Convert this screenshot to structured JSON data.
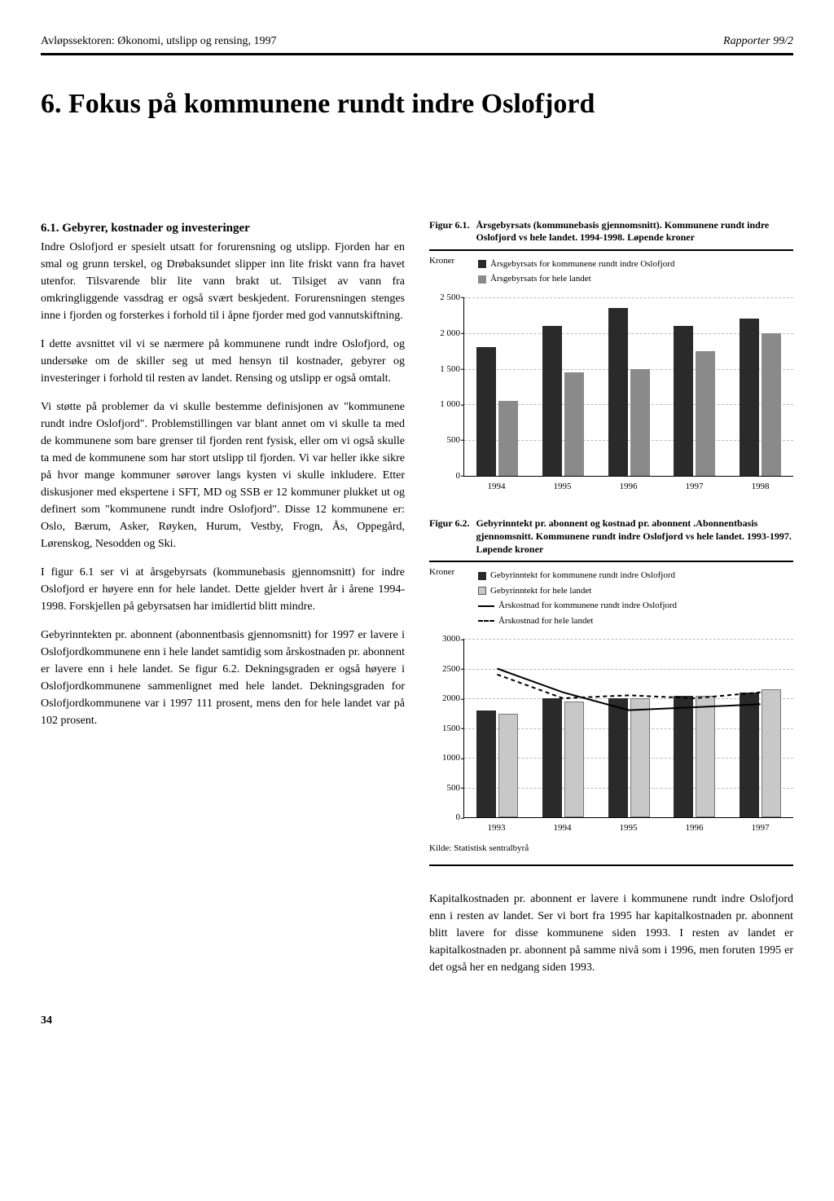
{
  "header": {
    "left": "Avløpssektoren: Økonomi, utslipp og rensing, 1997",
    "right": "Rapporter 99/2"
  },
  "chapter": {
    "number": "6.",
    "title": "Fokus på kommunene rundt indre Oslofjord"
  },
  "section": {
    "heading": "6.1. Gebyrer, kostnader og investeringer",
    "p1": "Indre Oslofjord er spesielt utsatt for forurensning og utslipp. Fjorden har en smal og grunn terskel, og Drøbaksundet slipper inn lite friskt vann fra havet utenfor. Tilsvarende blir lite vann brakt ut. Tilsiget av vann fra omkringliggende vassdrag er også svært beskjedent. Forurensningen stenges inne i fjorden og forsterkes i forhold til i åpne fjorder med god vannutskiftning.",
    "p2": "I dette avsnittet vil vi se nærmere på kommunene rundt indre Oslofjord, og undersøke om de skiller seg ut med hensyn til kostnader, gebyrer og investeringer i forhold til resten av landet. Rensing og utslipp er også omtalt.",
    "p3": "Vi støtte på problemer da vi skulle bestemme definisjonen av \"kommunene rundt indre Oslofjord\". Problemstillingen var blant annet om vi skulle ta med de kommunene som bare grenser til fjorden rent fysisk, eller om vi også skulle ta med de kommunene som har stort utslipp til fjorden. Vi var heller ikke sikre på hvor mange kommuner sørover langs kysten vi skulle inkludere. Etter diskusjoner med ekspertene i SFT, MD og SSB er 12 kommuner plukket ut og definert som \"kommunene rundt indre Oslofjord\". Disse 12 kommunene er: Oslo, Bærum, Asker, Røyken, Hurum, Vestby, Frogn, Ås, Oppegård, Lørenskog, Nesodden og Ski.",
    "p4": "I figur 6.1 ser vi at årsgebyrsats (kommunebasis gjennomsnitt) for indre Oslofjord er høyere enn for hele landet. Dette gjelder hvert år i årene 1994-1998. Forskjellen på gebyrsatsen har imidlertid blitt mindre.",
    "p5": "Gebyrinntekten pr. abonnent (abonnentbasis gjennomsnitt) for 1997 er lavere i Oslofjordkommunene enn i hele landet samtidig som årskostnaden pr. abonnent er lavere enn i hele landet. Se figur 6.2. Dekningsgraden er også høyere i Oslofjordkommunene sammenlignet med hele landet. Dekningsgraden for Oslofjordkommunene var i 1997 111 prosent, mens den for hele landet var på 102 prosent.",
    "p6": "Kapitalkostnaden pr. abonnent er lavere i kommunene rundt indre Oslofjord enn i resten av landet. Ser vi bort fra 1995 har kapitalkostnaden pr. abonnent blitt lavere for disse kommunene siden 1993. I resten av landet er kapitalkostnaden pr. abonnent på samme nivå som i 1996, men foruten 1995 er det også her en nedgang siden 1993."
  },
  "fig61": {
    "label": "Figur 6.1.",
    "caption": "Årsgebyrsats (kommunebasis gjennomsnitt). Kommunene rundt indre Oslofjord vs hele landet. 1994-1998. Løpende kroner",
    "ylabel": "Kroner",
    "legend1": "Årsgebyrsats for kommunene rundt indre Oslofjord",
    "legend2": "Årsgebyrsats for hele landet",
    "ymax": 2500,
    "ytick_step": 500,
    "yticks": [
      "0",
      "500",
      "1 000",
      "1 500",
      "2 000",
      "2 500"
    ],
    "categories": [
      "1994",
      "1995",
      "1996",
      "1997",
      "1998"
    ],
    "series1": [
      1800,
      2100,
      2350,
      2100,
      2200
    ],
    "series2": [
      1050,
      1450,
      1500,
      1750,
      2000
    ],
    "color1": "#2a2a2a",
    "color2": "#8a8a8a",
    "grid_color": "#bbbbbb",
    "bg": "#ffffff"
  },
  "fig62": {
    "label": "Figur 6.2.",
    "caption": "Gebyrinntekt pr. abonnent og kostnad pr. abonnent .Abonnentbasis gjennomsnitt. Kommunene rundt indre Oslofjord vs hele landet. 1993-1997. Løpende kroner",
    "ylabel": "Kroner",
    "legend1": "Gebyrinntekt for kommunene rundt indre Oslofjord",
    "legend2": "Gebyrinntekt for hele landet",
    "legend3": "Årskostnad for kommunene rundt indre Oslofjord",
    "legend4": "Årskostnad for hele landet",
    "ymax": 3000,
    "ytick_step": 500,
    "yticks": [
      "0",
      "500",
      "1000",
      "1500",
      "2000",
      "2500",
      "3000"
    ],
    "categories": [
      "1993",
      "1994",
      "1995",
      "1996",
      "1997"
    ],
    "bar1": [
      1800,
      2000,
      2000,
      2050,
      2100
    ],
    "bar2": [
      1750,
      1950,
      2000,
      2050,
      2150
    ],
    "line1": [
      2500,
      2100,
      1800,
      1850,
      1900
    ],
    "line2": [
      2400,
      2000,
      2050,
      2000,
      2100
    ],
    "color_bar1": "#2a2a2a",
    "color_bar2": "#c8c8c8",
    "color_line1": "#000000",
    "color_line2": "#000000",
    "grid_color": "#bbbbbb"
  },
  "source": "Kilde: Statistisk sentralbyrå",
  "page_number": "34"
}
